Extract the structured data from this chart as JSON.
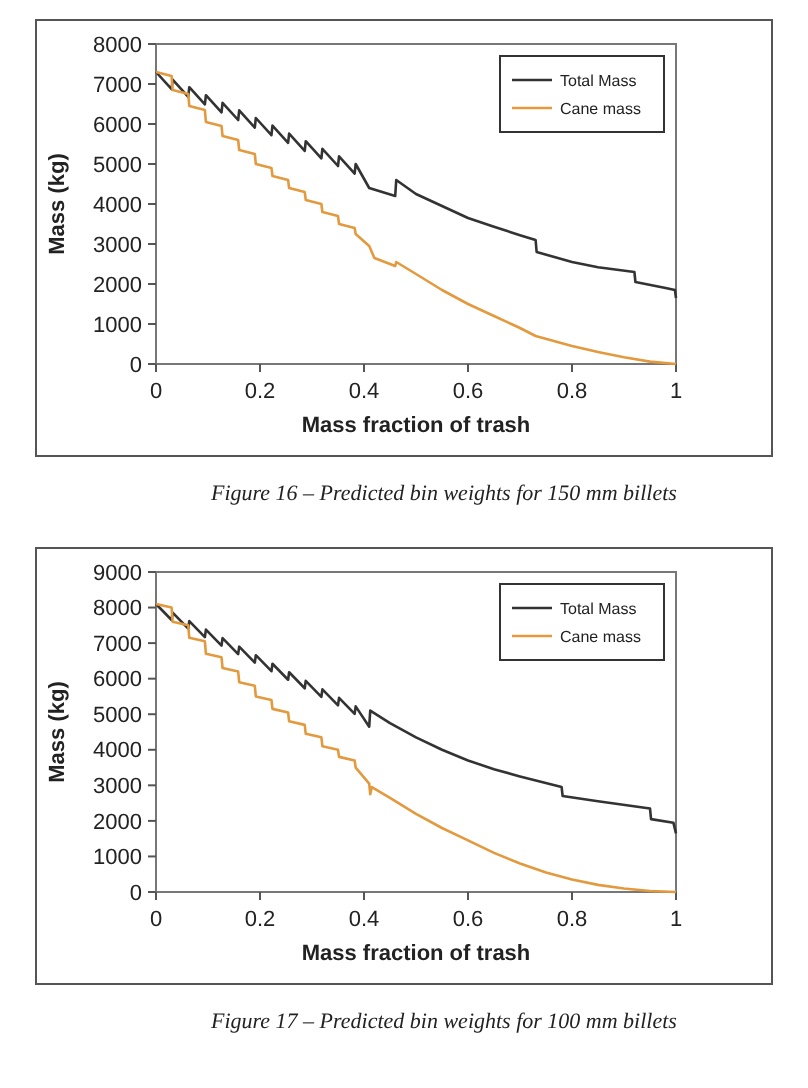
{
  "chart_data": [
    {
      "type": "line",
      "xlabel": "Mass fraction of trash",
      "ylabel": "Mass (kg)",
      "xlim": [
        0,
        1
      ],
      "ylim": [
        0,
        8000
      ],
      "xticks": [
        0,
        0.2,
        0.4,
        0.6,
        0.8,
        1
      ],
      "yticks": [
        0,
        1000,
        2000,
        3000,
        4000,
        5000,
        6000,
        7000,
        8000
      ],
      "grid": false,
      "legend": "top right",
      "annotations": [
        "Figure 16 – Predicted bin weights for 150 mm billets"
      ],
      "series": [
        {
          "name": "Total Mass",
          "color": "#333333",
          "x": [
            0,
            0.03,
            0.032,
            0.062,
            0.064,
            0.094,
            0.096,
            0.126,
            0.128,
            0.158,
            0.16,
            0.19,
            0.192,
            0.222,
            0.224,
            0.254,
            0.256,
            0.286,
            0.288,
            0.318,
            0.32,
            0.35,
            0.352,
            0.382,
            0.384,
            0.41,
            0.46,
            0.462,
            0.5,
            0.55,
            0.6,
            0.65,
            0.7,
            0.73,
            0.732,
            0.8,
            0.85,
            0.92,
            0.922,
            0.98,
            0.998,
            1
          ],
          "values": [
            7300,
            6870,
            7110,
            6680,
            6920,
            6490,
            6720,
            6290,
            6530,
            6100,
            6340,
            5910,
            6150,
            5720,
            5960,
            5530,
            5760,
            5330,
            5570,
            5140,
            5380,
            4950,
            5190,
            4760,
            5000,
            4400,
            4200,
            4600,
            4250,
            3950,
            3650,
            3430,
            3220,
            3100,
            2800,
            2550,
            2420,
            2300,
            2050,
            1900,
            1850,
            1650
          ]
        },
        {
          "name": "Cane mass",
          "color": "#e39a3e",
          "x": [
            0,
            0.03,
            0.032,
            0.062,
            0.064,
            0.094,
            0.096,
            0.126,
            0.128,
            0.158,
            0.16,
            0.19,
            0.192,
            0.222,
            0.224,
            0.254,
            0.256,
            0.286,
            0.288,
            0.318,
            0.32,
            0.35,
            0.352,
            0.382,
            0.384,
            0.41,
            0.42,
            0.46,
            0.462,
            0.5,
            0.55,
            0.6,
            0.65,
            0.7,
            0.73,
            0.8,
            0.85,
            0.9,
            0.95,
            1
          ],
          "values": [
            7300,
            7200,
            6850,
            6750,
            6450,
            6350,
            6050,
            5950,
            5700,
            5600,
            5350,
            5250,
            5000,
            4900,
            4700,
            4600,
            4400,
            4300,
            4100,
            4000,
            3800,
            3700,
            3500,
            3400,
            3250,
            2950,
            2650,
            2450,
            2550,
            2250,
            1850,
            1500,
            1200,
            900,
            700,
            450,
            300,
            170,
            60,
            0
          ]
        }
      ]
    },
    {
      "type": "line",
      "xlabel": "Mass fraction of trash",
      "ylabel": "Mass (kg)",
      "xlim": [
        0,
        1
      ],
      "ylim": [
        0,
        9000
      ],
      "xticks": [
        0,
        0.2,
        0.4,
        0.6,
        0.8,
        1
      ],
      "yticks": [
        0,
        1000,
        2000,
        3000,
        4000,
        5000,
        6000,
        7000,
        8000,
        9000
      ],
      "grid": false,
      "legend": "top right",
      "annotations": [
        "Figure 17 – Predicted bin weights for 100 mm billets"
      ],
      "series": [
        {
          "name": "Total Mass",
          "color": "#333333",
          "x": [
            0,
            0.03,
            0.032,
            0.062,
            0.064,
            0.094,
            0.096,
            0.126,
            0.128,
            0.158,
            0.16,
            0.19,
            0.192,
            0.222,
            0.224,
            0.254,
            0.256,
            0.286,
            0.288,
            0.318,
            0.32,
            0.35,
            0.352,
            0.382,
            0.384,
            0.41,
            0.412,
            0.45,
            0.5,
            0.55,
            0.6,
            0.65,
            0.7,
            0.78,
            0.782,
            0.85,
            0.95,
            0.952,
            0.995,
            1
          ],
          "values": [
            8100,
            7650,
            7860,
            7410,
            7620,
            7170,
            7380,
            6930,
            7140,
            6690,
            6900,
            6450,
            6660,
            6210,
            6420,
            5970,
            6180,
            5730,
            5940,
            5490,
            5700,
            5250,
            5460,
            5010,
            5220,
            4650,
            5100,
            4750,
            4350,
            4000,
            3700,
            3450,
            3250,
            2950,
            2700,
            2550,
            2350,
            2050,
            1950,
            1650
          ]
        },
        {
          "name": "Cane mass",
          "color": "#e39a3e",
          "x": [
            0,
            0.03,
            0.032,
            0.062,
            0.064,
            0.094,
            0.096,
            0.126,
            0.128,
            0.158,
            0.16,
            0.19,
            0.192,
            0.222,
            0.224,
            0.254,
            0.256,
            0.286,
            0.288,
            0.318,
            0.32,
            0.35,
            0.352,
            0.382,
            0.384,
            0.41,
            0.412,
            0.415,
            0.45,
            0.5,
            0.55,
            0.6,
            0.65,
            0.7,
            0.75,
            0.8,
            0.85,
            0.9,
            0.95,
            1
          ],
          "values": [
            8100,
            8000,
            7600,
            7500,
            7150,
            7050,
            6700,
            6600,
            6300,
            6200,
            5900,
            5800,
            5500,
            5400,
            5150,
            5050,
            4800,
            4700,
            4450,
            4350,
            4100,
            4000,
            3800,
            3700,
            3500,
            3050,
            2750,
            2950,
            2650,
            2200,
            1800,
            1450,
            1100,
            800,
            550,
            350,
            200,
            100,
            30,
            0
          ]
        }
      ]
    }
  ]
}
